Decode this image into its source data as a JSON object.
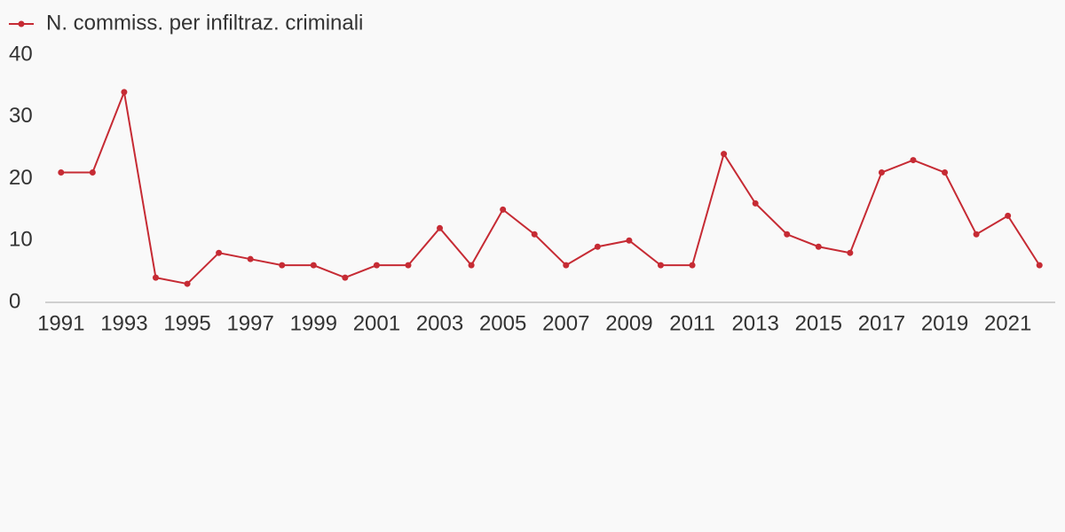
{
  "chart_data": {
    "type": "line",
    "x": [
      1991,
      1992,
      1993,
      1994,
      1995,
      1996,
      1997,
      1998,
      1999,
      2000,
      2001,
      2002,
      2003,
      2004,
      2005,
      2006,
      2007,
      2008,
      2009,
      2010,
      2011,
      2012,
      2013,
      2014,
      2015,
      2016,
      2017,
      2018,
      2019,
      2020,
      2021,
      2022
    ],
    "series": [
      {
        "name": "N. commiss. per infiltraz. criminali",
        "color": "#c62b34",
        "values": [
          21,
          21,
          34,
          4,
          3,
          8,
          7,
          6,
          6,
          4,
          6,
          6,
          12,
          6,
          15,
          11,
          6,
          9,
          10,
          6,
          6,
          24,
          16,
          11,
          9,
          8,
          21,
          23,
          21,
          11,
          14,
          6
        ]
      }
    ],
    "xlim": [
      1990.5,
      2022.5
    ],
    "xticks": [
      1991,
      1993,
      1995,
      1997,
      1999,
      2001,
      2003,
      2005,
      2007,
      2009,
      2011,
      2013,
      2015,
      2017,
      2019,
      2021
    ],
    "ylim": [
      0,
      40
    ],
    "yticks": [
      0,
      10,
      20,
      30,
      40
    ],
    "grid": false,
    "legend": "top-left"
  }
}
